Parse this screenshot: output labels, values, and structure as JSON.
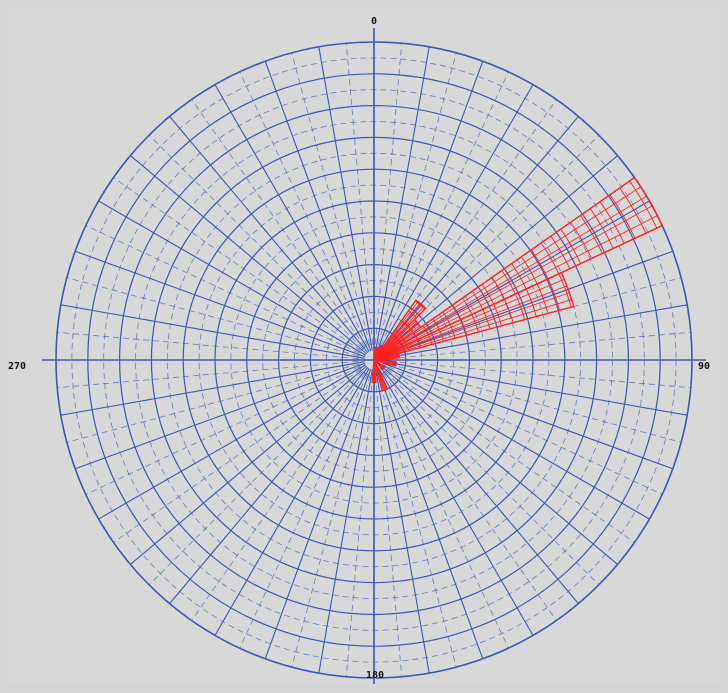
{
  "chart_data": {
    "type": "rose",
    "title": "",
    "angle_tick_labels": [
      "0",
      "90",
      "180",
      "270"
    ],
    "angle_direction": "clockwise",
    "zero_at": "top",
    "grid": true,
    "sector_width_deg": 10,
    "rlim": [
      0,
      1
    ],
    "series": [
      {
        "values": [
          {
            "direction_deg": 60,
            "r": 1.0
          },
          {
            "direction_deg": 70,
            "r": 0.65
          },
          {
            "direction_deg": 40,
            "r": 0.23
          },
          {
            "direction_deg": 50,
            "r": 0.18
          },
          {
            "direction_deg": 80,
            "r": 0.08
          },
          {
            "direction_deg": 100,
            "r": 0.07
          },
          {
            "direction_deg": 160,
            "r": 0.1
          },
          {
            "direction_deg": 180,
            "r": 0.07
          },
          {
            "direction_deg": 30,
            "r": 0.05
          },
          {
            "direction_deg": 10,
            "r": 0.04
          },
          {
            "direction_deg": 130,
            "r": 0.04
          }
        ]
      }
    ]
  },
  "colors": {
    "background": "#d8d8d8",
    "grid": "#3a58b8",
    "sectors": "#ff2020"
  }
}
